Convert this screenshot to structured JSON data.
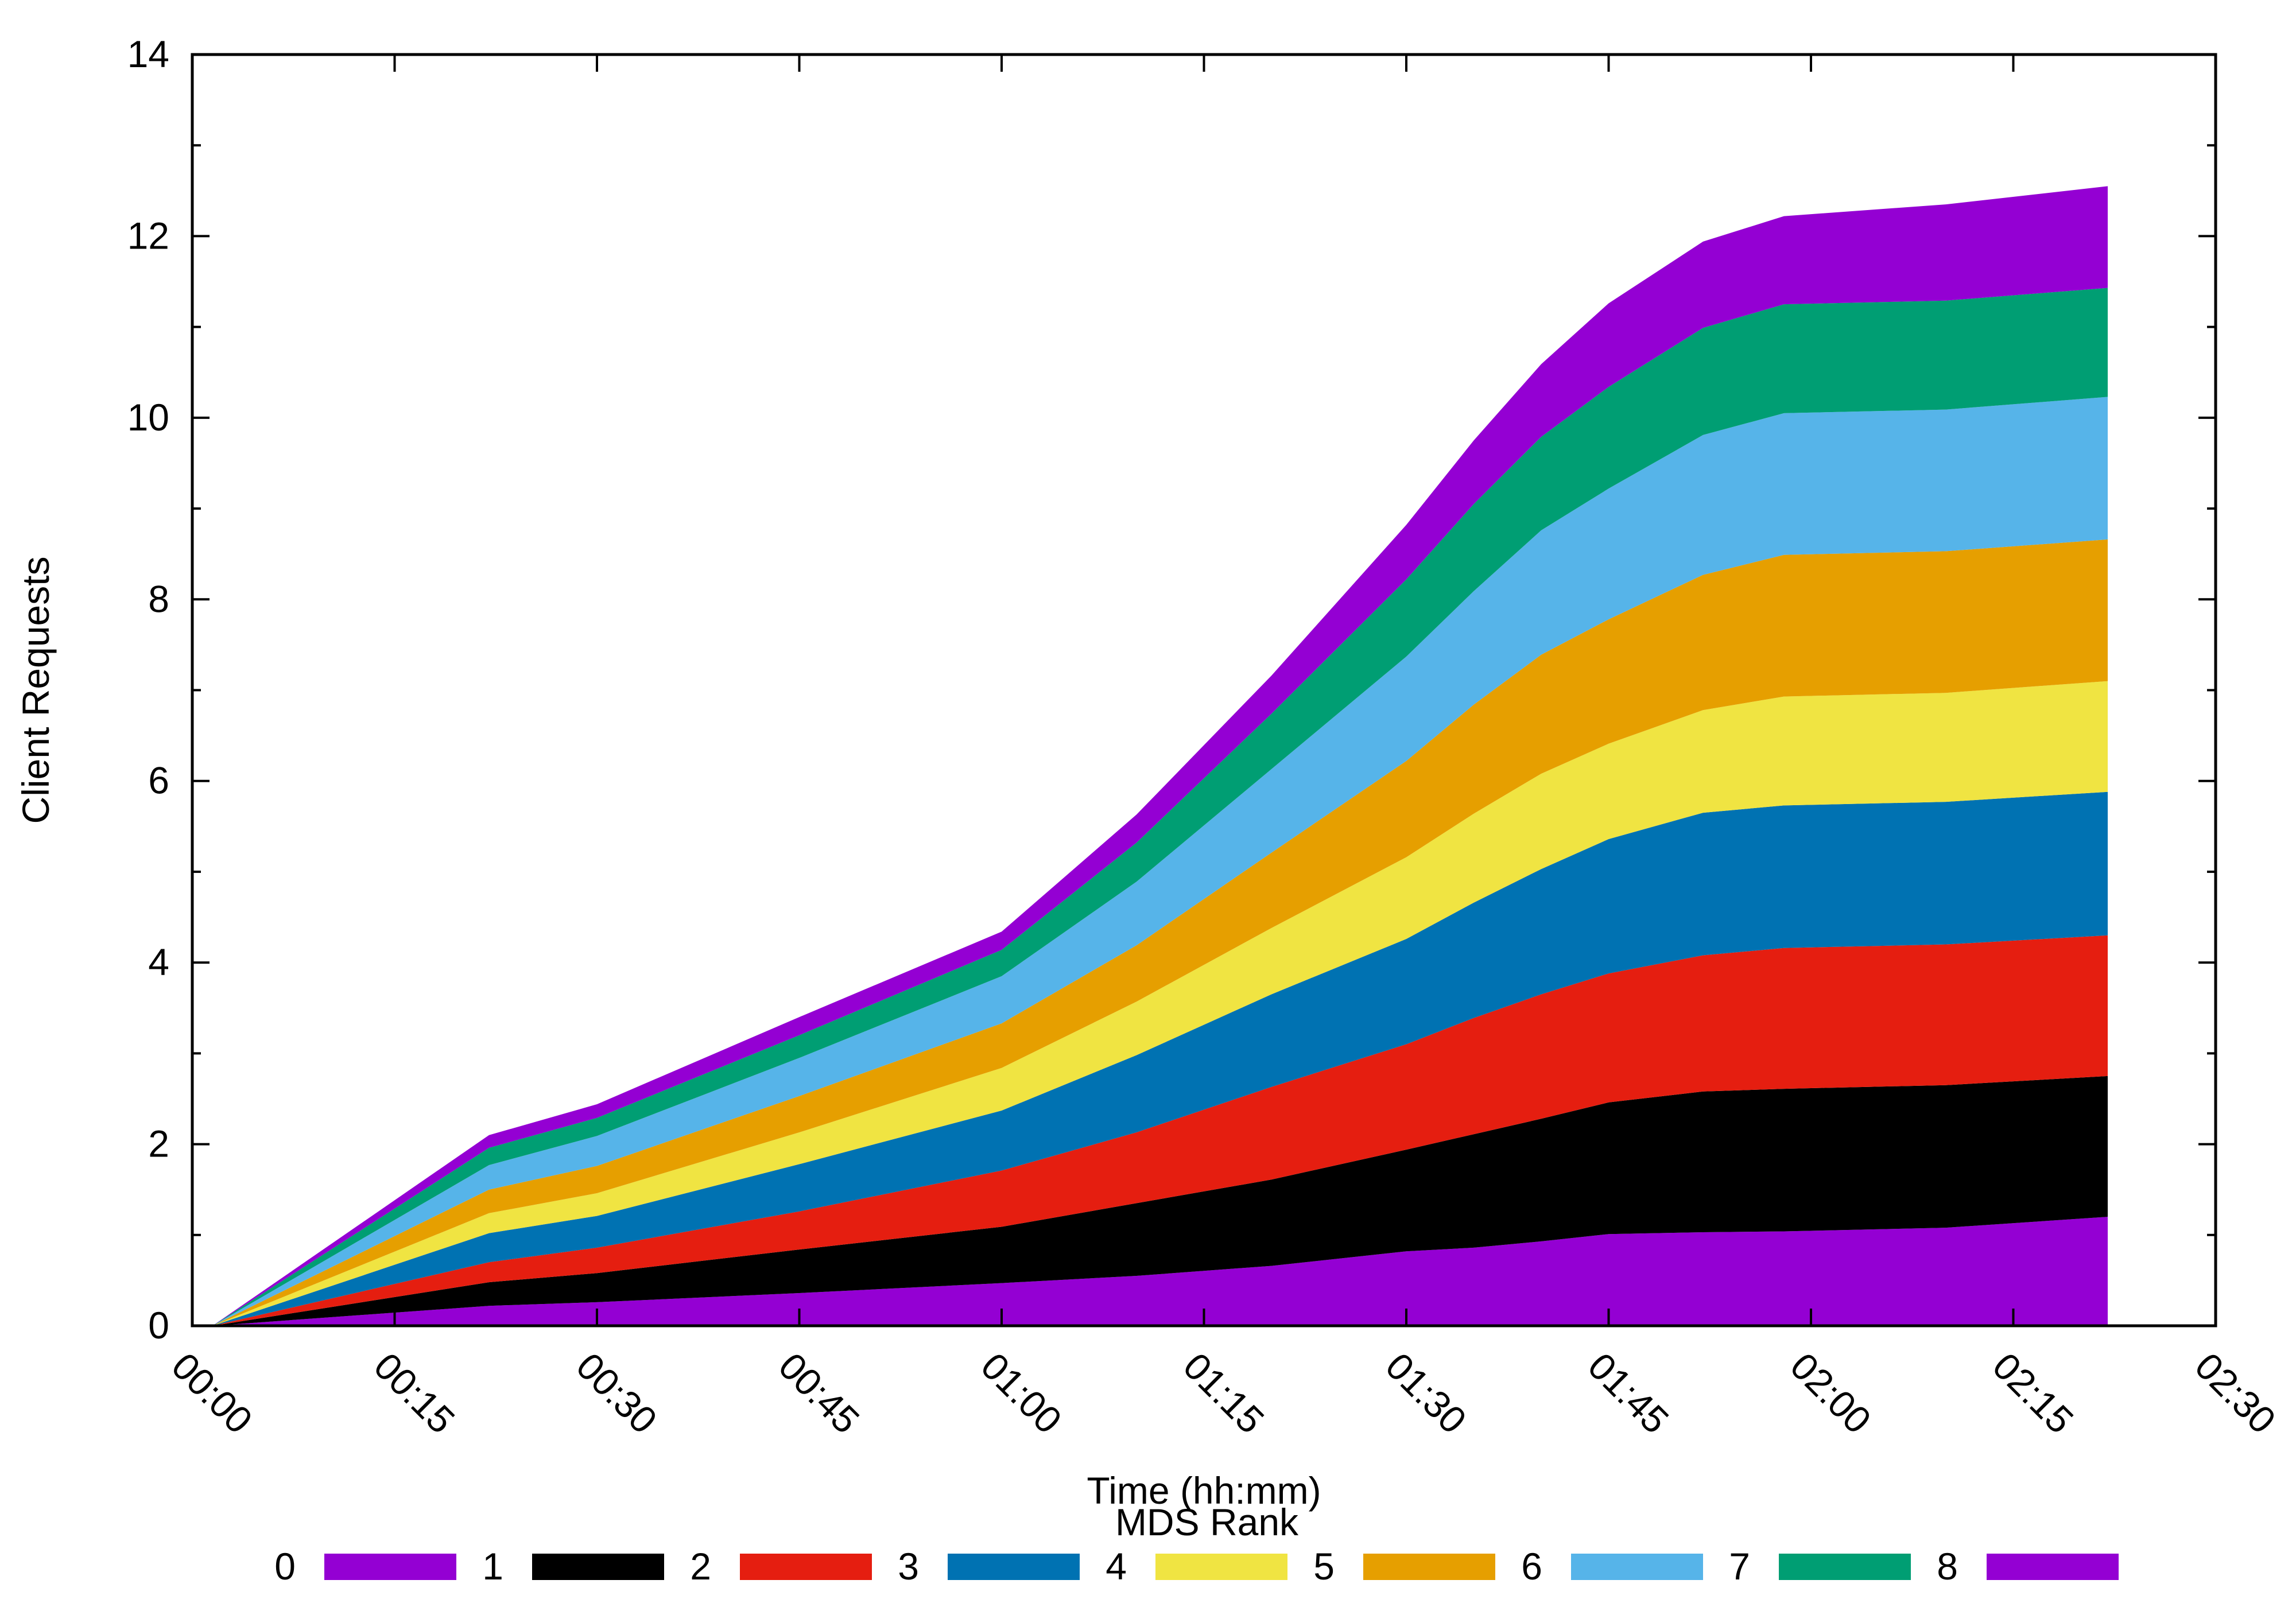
{
  "chart_data": {
    "type": "area",
    "stacked": true,
    "xlabel": "Time (hh:mm)",
    "ylabel": "Client Requests",
    "xlim": [
      0,
      150
    ],
    "ylim": [
      0,
      14
    ],
    "x_ticks": [
      {
        "value": 0,
        "label": "00:00"
      },
      {
        "value": 15,
        "label": "00:15"
      },
      {
        "value": 30,
        "label": "00:30"
      },
      {
        "value": 45,
        "label": "00:45"
      },
      {
        "value": 60,
        "label": "01:00"
      },
      {
        "value": 75,
        "label": "01:15"
      },
      {
        "value": 90,
        "label": "01:30"
      },
      {
        "value": 105,
        "label": "01:45"
      },
      {
        "value": 120,
        "label": "02:00"
      },
      {
        "value": 135,
        "label": "02:15"
      },
      {
        "value": 150,
        "label": "02:30"
      }
    ],
    "y_ticks": [
      {
        "value": 0,
        "label": "0"
      },
      {
        "value": 2,
        "label": "2"
      },
      {
        "value": 4,
        "label": "4"
      },
      {
        "value": 6,
        "label": "6"
      },
      {
        "value": 8,
        "label": "8"
      },
      {
        "value": 10,
        "label": "10"
      },
      {
        "value": 12,
        "label": "12"
      },
      {
        "value": 14,
        "label": "14"
      }
    ],
    "legend_title": "MDS Rank",
    "legend_position": "bottom",
    "x": [
      1.5,
      22,
      30,
      45,
      60,
      70,
      80,
      90,
      95,
      100,
      105,
      112,
      118,
      130,
      142
    ],
    "series": [
      {
        "name": "0",
        "color": "#9400d3",
        "values": [
          0.0,
          0.22,
          0.26,
          0.36,
          0.47,
          0.55,
          0.66,
          0.82,
          0.86,
          0.93,
          1.01,
          1.03,
          1.04,
          1.08,
          1.2
        ]
      },
      {
        "name": "1",
        "color": "#000000",
        "values": [
          0.0,
          0.26,
          0.32,
          0.48,
          0.62,
          0.8,
          0.95,
          1.12,
          1.25,
          1.35,
          1.45,
          1.55,
          1.57,
          1.57,
          1.55
        ]
      },
      {
        "name": "2",
        "color": "#e51e10",
        "values": [
          0.0,
          0.22,
          0.28,
          0.42,
          0.62,
          0.78,
          1.02,
          1.16,
          1.28,
          1.37,
          1.42,
          1.5,
          1.55,
          1.55,
          1.55
        ]
      },
      {
        "name": "3",
        "color": "#0072b2",
        "values": [
          0.0,
          0.32,
          0.35,
          0.52,
          0.66,
          0.85,
          1.02,
          1.16,
          1.27,
          1.38,
          1.48,
          1.57,
          1.57,
          1.57,
          1.58
        ]
      },
      {
        "name": "4",
        "color": "#f0e442",
        "values": [
          0.0,
          0.22,
          0.25,
          0.35,
          0.47,
          0.59,
          0.73,
          0.9,
          0.98,
          1.05,
          1.05,
          1.13,
          1.2,
          1.2,
          1.22
        ]
      },
      {
        "name": "5",
        "color": "#e69f00",
        "values": [
          0.0,
          0.26,
          0.3,
          0.4,
          0.49,
          0.62,
          0.83,
          1.06,
          1.2,
          1.31,
          1.37,
          1.49,
          1.56,
          1.56,
          1.56
        ]
      },
      {
        "name": "6",
        "color": "#56b4e9",
        "values": [
          0.0,
          0.27,
          0.33,
          0.42,
          0.52,
          0.7,
          0.92,
          1.15,
          1.25,
          1.37,
          1.44,
          1.54,
          1.56,
          1.56,
          1.57
        ]
      },
      {
        "name": "7",
        "color": "#009e73",
        "values": [
          0.0,
          0.19,
          0.2,
          0.25,
          0.29,
          0.43,
          0.61,
          0.85,
          0.96,
          1.03,
          1.12,
          1.18,
          1.2,
          1.2,
          1.2
        ]
      },
      {
        "name": "8",
        "color": "#9400d3",
        "values": [
          0.0,
          0.14,
          0.15,
          0.2,
          0.2,
          0.31,
          0.42,
          0.6,
          0.7,
          0.8,
          0.92,
          0.95,
          0.97,
          1.06,
          1.12
        ]
      }
    ],
    "grid": false
  }
}
